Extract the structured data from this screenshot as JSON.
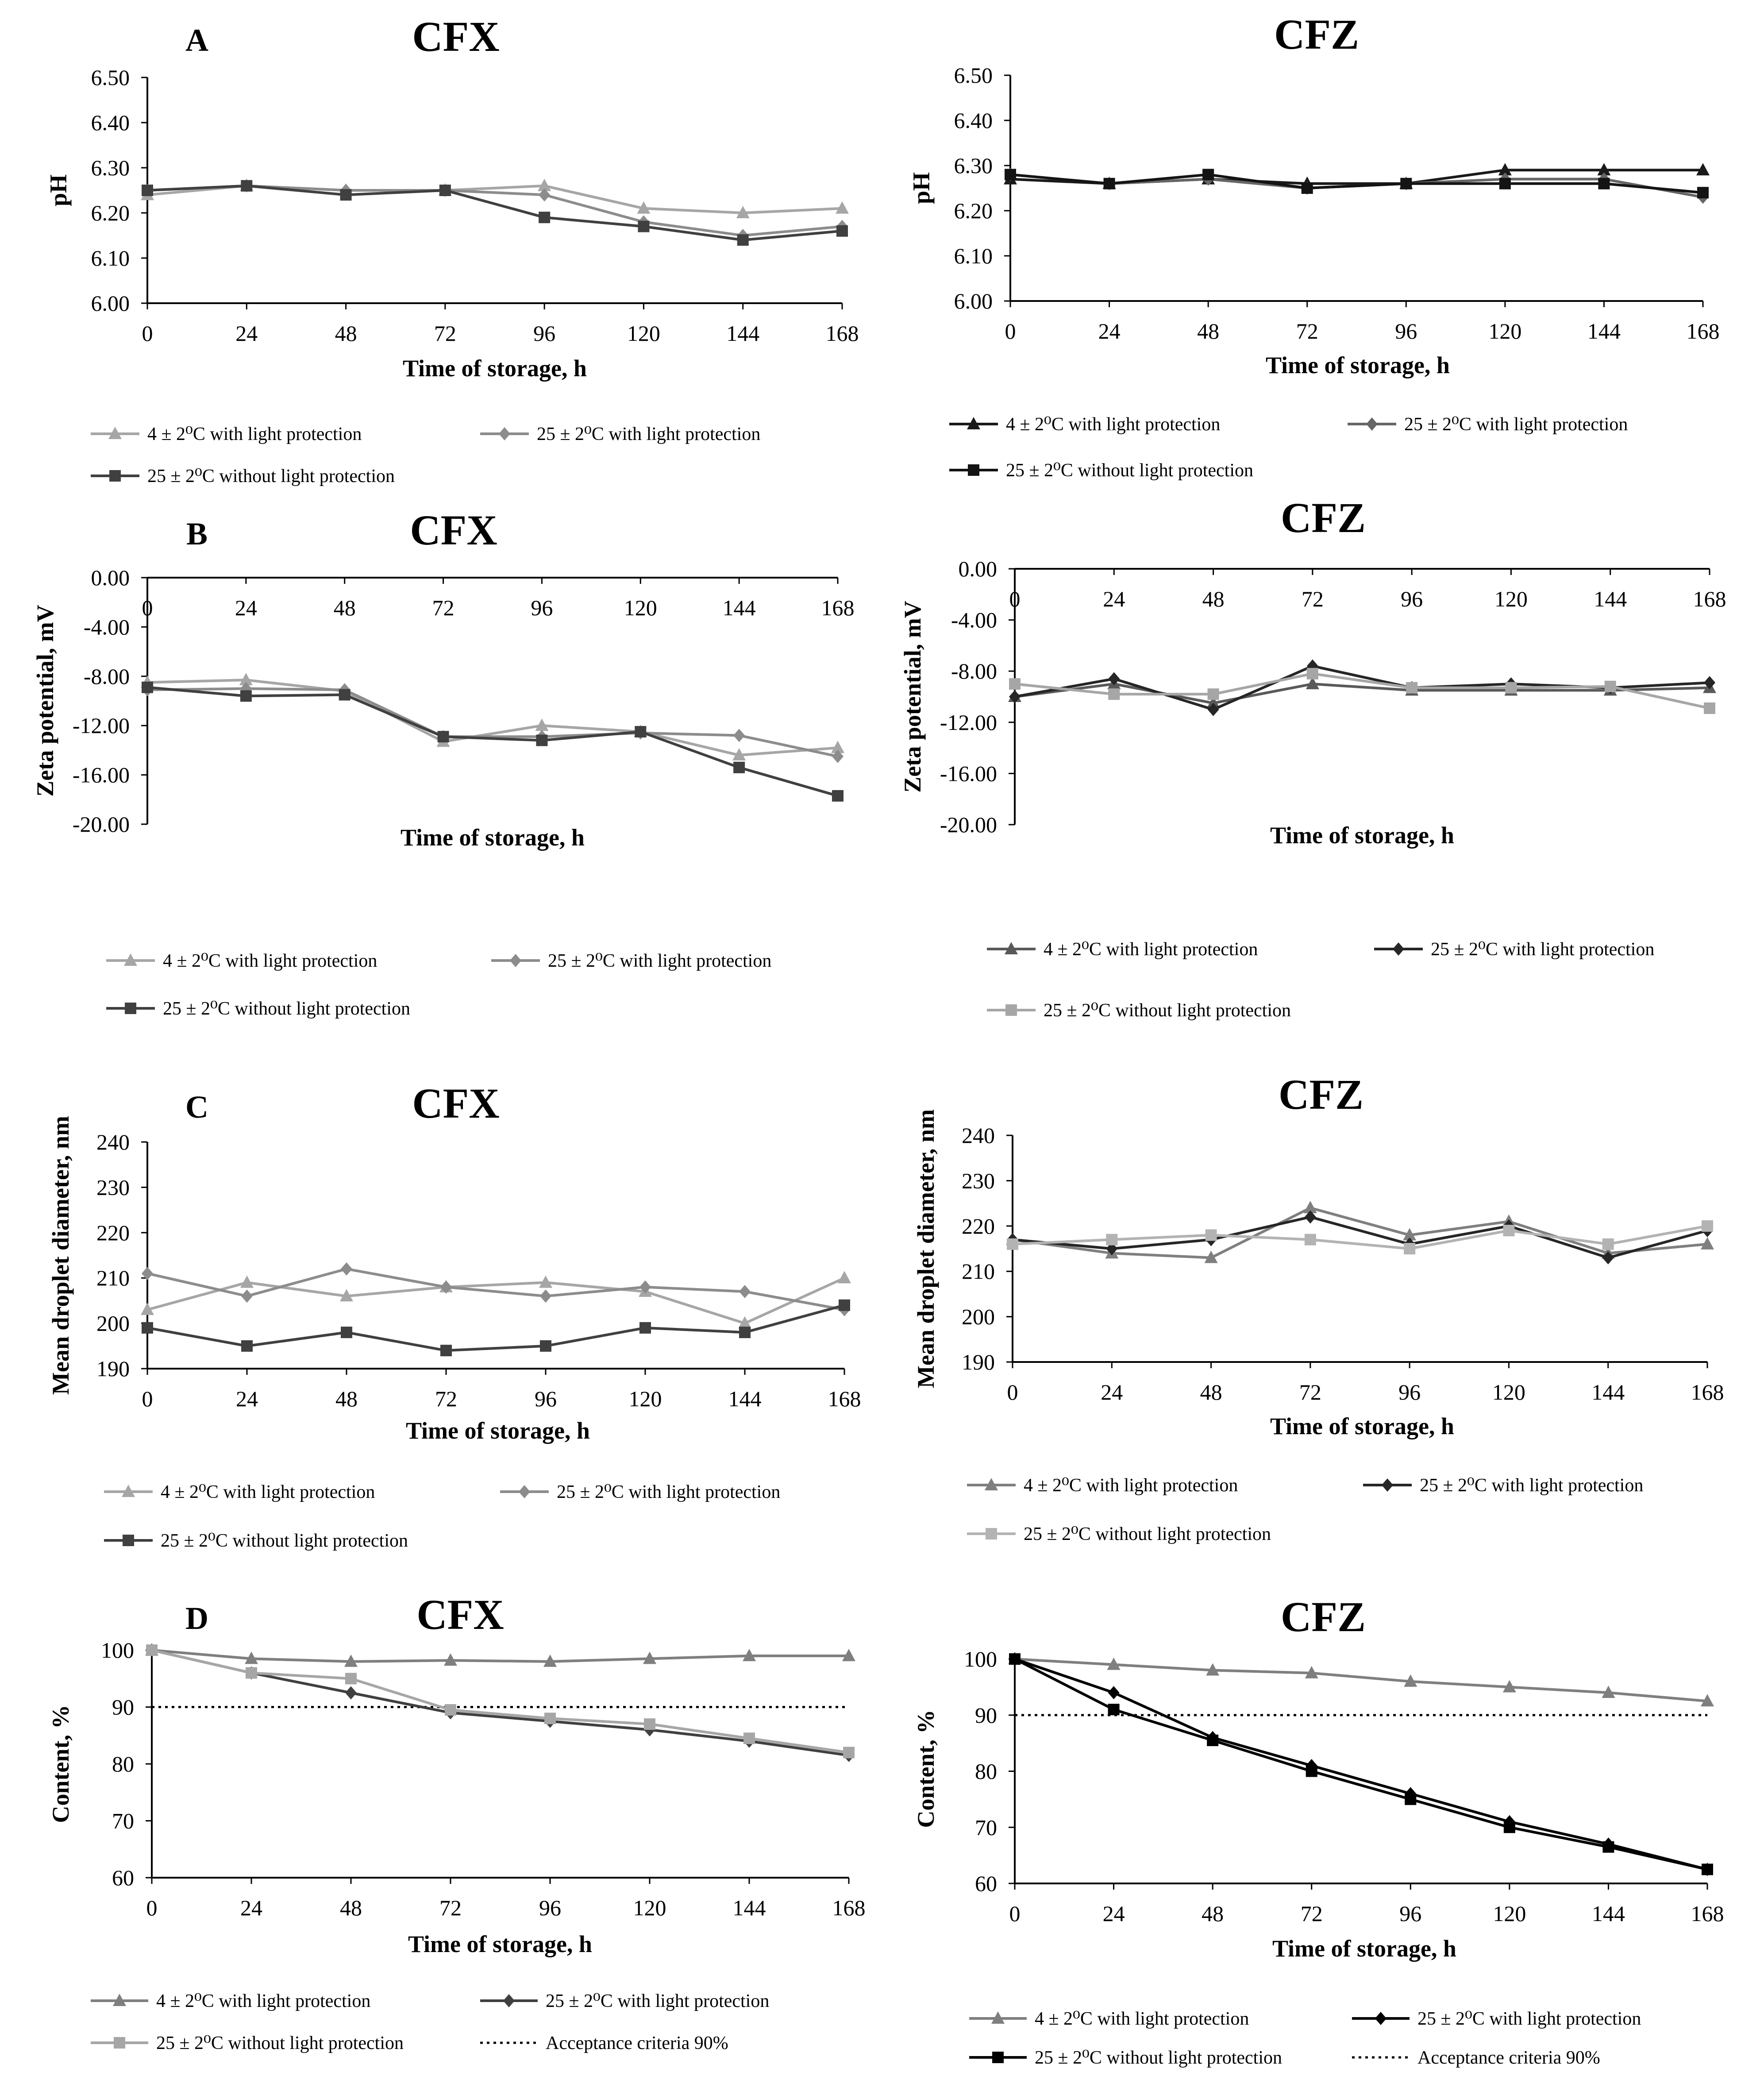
{
  "figure": {
    "x_label": "Time of storage, h",
    "time_points": [
      0,
      24,
      48,
      72,
      96,
      120,
      144,
      168
    ]
  },
  "legend_labels": {
    "s1": "4 ± 2⁰C with light protection",
    "s2": "25 ± 2⁰C with light protection",
    "s3": "25 ± 2⁰C without light protection",
    "acc": "Acceptance criteria 90%"
  },
  "series_colors": {
    "cfx": [
      "#a6a6a6",
      "#8c8c8c",
      "#404040"
    ],
    "cfz": [
      "#1a1a1a",
      "#666666",
      "#141414"
    ],
    "cfx_d": [
      "#7f7f7f",
      "#404040",
      "#a6a6a6"
    ],
    "cfz_d": [
      "#7f7f7f",
      "#000000",
      "#000000"
    ],
    "cfz_b": [
      "#595959",
      "#262626",
      "#a6a6a6"
    ],
    "cfz_c": [
      "#7f7f7f",
      "#262626",
      "#b3b3b3"
    ]
  },
  "chart_data": [
    {
      "id": "A-CFX",
      "panel_letter": "A",
      "title": "CFX",
      "type": "line",
      "xlabel": "Time of storage, h",
      "ylabel": "pH",
      "x": [
        0,
        24,
        48,
        72,
        96,
        120,
        144,
        168
      ],
      "ylim": [
        6.0,
        6.5
      ],
      "yticks": [
        "6.00",
        "6.10",
        "6.20",
        "6.30",
        "6.40",
        "6.50"
      ],
      "series": [
        {
          "name": "4 ± 2⁰C with light protection",
          "marker": "triangle",
          "values": [
            6.24,
            6.26,
            6.25,
            6.25,
            6.26,
            6.21,
            6.2,
            6.21
          ]
        },
        {
          "name": "25 ± 2⁰C with light protection",
          "marker": "diamond",
          "values": [
            6.25,
            6.26,
            6.25,
            6.25,
            6.24,
            6.18,
            6.15,
            6.17
          ]
        },
        {
          "name": "25 ± 2⁰C without light protection",
          "marker": "square",
          "values": [
            6.25,
            6.26,
            6.24,
            6.25,
            6.19,
            6.17,
            6.14,
            6.16
          ]
        }
      ]
    },
    {
      "id": "A-CFZ",
      "panel_letter": "",
      "title": "CFZ",
      "type": "line",
      "xlabel": "Time of storage, h",
      "ylabel": "pH",
      "x": [
        0,
        24,
        48,
        72,
        96,
        120,
        144,
        168
      ],
      "ylim": [
        6.0,
        6.5
      ],
      "yticks": [
        "6.00",
        "6.10",
        "6.20",
        "6.30",
        "6.40",
        "6.50"
      ],
      "series": [
        {
          "name": "4 ± 2⁰C with light protection",
          "marker": "triangle",
          "values": [
            6.27,
            6.26,
            6.27,
            6.26,
            6.26,
            6.29,
            6.29,
            6.29
          ]
        },
        {
          "name": "25 ± 2⁰C with light protection",
          "marker": "diamond",
          "values": [
            6.28,
            6.26,
            6.27,
            6.25,
            6.26,
            6.27,
            6.27,
            6.23
          ]
        },
        {
          "name": "25 ± 2⁰C without light protection",
          "marker": "square",
          "values": [
            6.28,
            6.26,
            6.28,
            6.25,
            6.26,
            6.26,
            6.26,
            6.24
          ]
        }
      ]
    },
    {
      "id": "B-CFX",
      "panel_letter": "B",
      "title": "CFX",
      "type": "line",
      "xlabel": "Time of storage, h",
      "ylabel": "Zeta potential, mV",
      "x": [
        0,
        24,
        48,
        72,
        96,
        120,
        144,
        168
      ],
      "ylim": [
        -20.0,
        0.0
      ],
      "yticks": [
        "0.00",
        "-4.00",
        "-8.00",
        "-12.00",
        "-16.00",
        "-20.00"
      ],
      "series": [
        {
          "name": "4 ± 2⁰C with light protection",
          "marker": "triangle",
          "values": [
            -8.5,
            -8.3,
            -9.2,
            -13.3,
            -12.0,
            -12.5,
            -14.4,
            -13.8
          ]
        },
        {
          "name": "25 ± 2⁰C with light protection",
          "marker": "diamond",
          "values": [
            -9.1,
            -9.0,
            -9.1,
            -12.9,
            -12.9,
            -12.6,
            -12.8,
            -14.5
          ]
        },
        {
          "name": "25 ± 2⁰C without light protection",
          "marker": "square",
          "values": [
            -8.9,
            -9.6,
            -9.5,
            -12.9,
            -13.2,
            -12.5,
            -15.4,
            -17.7
          ]
        }
      ]
    },
    {
      "id": "B-CFZ",
      "panel_letter": "",
      "title": "CFZ",
      "type": "line",
      "xlabel": "Time of storage, h",
      "ylabel": "Zeta potential, mV",
      "x": [
        0,
        24,
        48,
        72,
        96,
        120,
        144,
        168
      ],
      "ylim": [
        -20.0,
        0.0
      ],
      "yticks": [
        "0.00",
        "-4.00",
        "-8.00",
        "-12.00",
        "-16.00",
        "-20.00"
      ],
      "series": [
        {
          "name": "4 ± 2⁰C with light protection",
          "marker": "triangle",
          "values": [
            -10.0,
            -9.0,
            -10.5,
            -9.0,
            -9.5,
            -9.5,
            -9.5,
            -9.3
          ]
        },
        {
          "name": "25 ± 2⁰C with light protection",
          "marker": "diamond",
          "values": [
            -10.0,
            -8.6,
            -11.0,
            -7.6,
            -9.3,
            -9.0,
            -9.3,
            -8.9
          ]
        },
        {
          "name": "25 ± 2⁰C without light protection",
          "marker": "square",
          "values": [
            -9.0,
            -9.8,
            -9.8,
            -8.2,
            -9.3,
            -9.3,
            -9.2,
            -10.9
          ]
        }
      ]
    },
    {
      "id": "C-CFX",
      "panel_letter": "C",
      "title": "CFX",
      "type": "line",
      "xlabel": "Time of storage, h",
      "ylabel": "Mean droplet diameter, nm",
      "x": [
        0,
        24,
        48,
        72,
        96,
        120,
        144,
        168
      ],
      "ylim": [
        190,
        240
      ],
      "yticks": [
        "190",
        "200",
        "210",
        "220",
        "230",
        "240"
      ],
      "series": [
        {
          "name": "4 ± 2⁰C with light protection",
          "marker": "triangle",
          "values": [
            203,
            209,
            206,
            208,
            209,
            207,
            200,
            210
          ]
        },
        {
          "name": "25 ± 2⁰C with light protection",
          "marker": "diamond",
          "values": [
            211,
            206,
            212,
            208,
            206,
            208,
            207,
            203
          ]
        },
        {
          "name": "25 ± 2⁰C without light protection",
          "marker": "square",
          "values": [
            199,
            195,
            198,
            194,
            195,
            199,
            198,
            204
          ]
        }
      ]
    },
    {
      "id": "C-CFZ",
      "panel_letter": "",
      "title": "CFZ",
      "type": "line",
      "xlabel": "Time of storage, h",
      "ylabel": "Mean droplet diameter, nm",
      "x": [
        0,
        24,
        48,
        72,
        96,
        120,
        144,
        168
      ],
      "ylim": [
        190,
        240
      ],
      "yticks": [
        "190",
        "200",
        "210",
        "220",
        "230",
        "240"
      ],
      "series": [
        {
          "name": "4 ± 2⁰C with light protection",
          "marker": "triangle",
          "values": [
            217,
            214,
            213,
            224,
            218,
            221,
            214,
            216
          ]
        },
        {
          "name": "25 ± 2⁰C with light protection",
          "marker": "diamond",
          "values": [
            217,
            215,
            217,
            222,
            216,
            220,
            213,
            219
          ]
        },
        {
          "name": "25 ± 2⁰C without light protection",
          "marker": "square",
          "values": [
            216,
            217,
            218,
            217,
            215,
            219,
            216,
            220
          ]
        }
      ]
    },
    {
      "id": "D-CFX",
      "panel_letter": "D",
      "title": "CFX",
      "type": "line",
      "xlabel": "Time of storage, h",
      "ylabel": "Content, %",
      "x": [
        0,
        24,
        48,
        72,
        96,
        120,
        144,
        168
      ],
      "ylim": [
        60,
        100
      ],
      "yticks": [
        "60",
        "70",
        "80",
        "90",
        "100"
      ],
      "reference_line": {
        "name": "Acceptance criteria 90%",
        "value": 90
      },
      "series": [
        {
          "name": "4 ± 2⁰C with light protection",
          "marker": "triangle",
          "values": [
            100,
            98.5,
            98,
            98.2,
            98,
            98.5,
            99,
            99
          ]
        },
        {
          "name": "25 ± 2⁰C with light protection",
          "marker": "diamond",
          "values": [
            100,
            96,
            92.5,
            89,
            87.5,
            86,
            84,
            81.5
          ]
        },
        {
          "name": "25 ± 2⁰C without light protection",
          "marker": "square",
          "values": [
            100,
            96,
            95,
            89.5,
            88,
            87,
            84.5,
            82
          ]
        }
      ]
    },
    {
      "id": "D-CFZ",
      "panel_letter": "",
      "title": "CFZ",
      "type": "line",
      "xlabel": "Time of storage, h",
      "ylabel": "Content, %",
      "x": [
        0,
        24,
        48,
        72,
        96,
        120,
        144,
        168
      ],
      "ylim": [
        60,
        100
      ],
      "yticks": [
        "60",
        "70",
        "80",
        "90",
        "100"
      ],
      "reference_line": {
        "name": "Acceptance criteria 90%",
        "value": 90
      },
      "series": [
        {
          "name": "4 ± 2⁰C with light protection",
          "marker": "triangle",
          "values": [
            100,
            99,
            98,
            97.5,
            96,
            95,
            94,
            92.5
          ]
        },
        {
          "name": "25 ± 2⁰C with light protection",
          "marker": "diamond",
          "values": [
            100,
            94,
            86,
            81,
            76,
            71,
            67,
            62.5
          ]
        },
        {
          "name": "25 ± 2⁰C without light protection",
          "marker": "square",
          "values": [
            100,
            91,
            85.5,
            80,
            75,
            70,
            66.5,
            62.5
          ]
        }
      ]
    }
  ]
}
